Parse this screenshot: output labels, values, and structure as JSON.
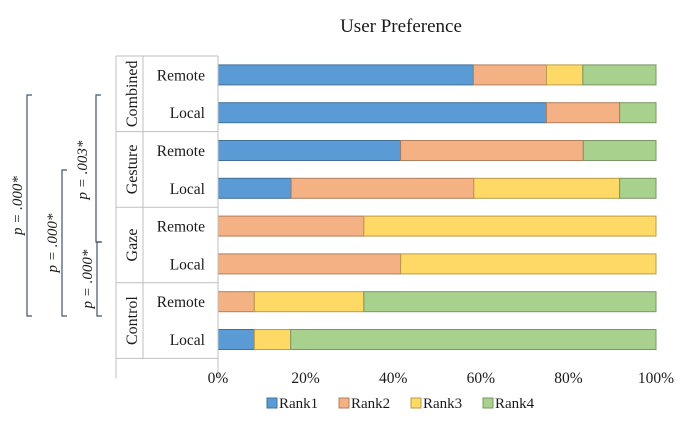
{
  "chart_data": {
    "type": "bar",
    "orientation": "horizontal",
    "stacked": "percent",
    "title": "User Preference",
    "groups": [
      {
        "name": "Combined",
        "categories": [
          "Remote",
          "Local"
        ]
      },
      {
        "name": "Gesture",
        "categories": [
          "Remote",
          "Local"
        ]
      },
      {
        "name": "Gaze",
        "categories": [
          "Remote",
          "Local"
        ]
      },
      {
        "name": "Control",
        "categories": [
          "Remote",
          "Local"
        ]
      }
    ],
    "series": [
      {
        "name": "Rank1",
        "color": "#5b9bd5",
        "values": [
          58.3,
          75.0,
          41.7,
          16.7,
          0,
          0,
          0,
          8.3
        ]
      },
      {
        "name": "Rank2",
        "color": "#f4b183",
        "values": [
          16.7,
          16.7,
          41.7,
          41.7,
          33.3,
          41.7,
          8.3,
          0
        ]
      },
      {
        "name": "Rank3",
        "color": "#ffd966",
        "values": [
          8.3,
          0,
          0,
          33.3,
          66.7,
          58.3,
          25.0,
          8.3
        ]
      },
      {
        "name": "Rank4",
        "color": "#a9d18e",
        "values": [
          16.7,
          8.3,
          16.6,
          8.3,
          0,
          0,
          66.7,
          83.4
        ]
      }
    ],
    "xlim": [
      0,
      100
    ],
    "xticks": [
      "0%",
      "20%",
      "40%",
      "60%",
      "80%",
      "100%"
    ],
    "legend_position": "bottom",
    "annotations": [
      {
        "text": "p = .000*",
        "spans": [
          "Combined",
          "Control"
        ]
      },
      {
        "text": "p = .000*",
        "spans": [
          "Gesture",
          "Control"
        ]
      },
      {
        "text": "p = .000*",
        "spans": [
          "Gaze",
          "Control"
        ]
      },
      {
        "text": "p = .003*",
        "spans": [
          "Combined",
          "Gaze"
        ]
      }
    ]
  }
}
